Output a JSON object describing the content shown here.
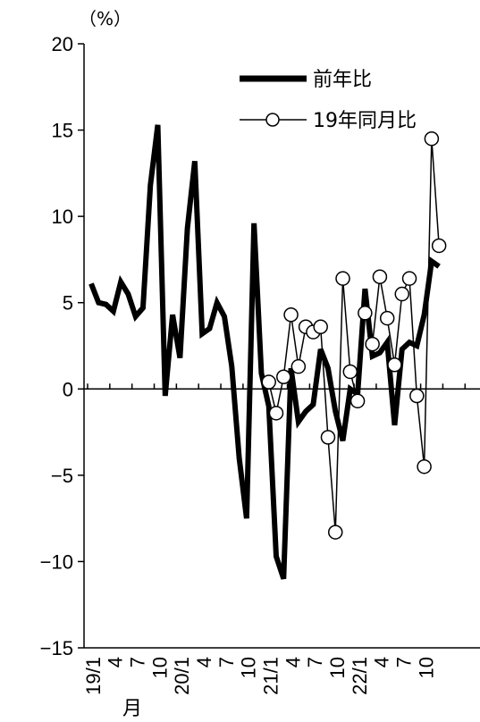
{
  "chart_data": {
    "type": "line",
    "unit_label": "（%）",
    "ylim": [
      -15,
      20
    ],
    "y_ticks": [
      20,
      15,
      10,
      5,
      0,
      -5,
      -10,
      -15
    ],
    "y_tick_labels": [
      "20",
      "15",
      "10",
      "5",
      "0",
      "−5",
      "−10",
      "−15"
    ],
    "x_tick_labels": [
      {
        "index": 0,
        "text": "19/1"
      },
      {
        "index": 3,
        "text": "4"
      },
      {
        "index": 6,
        "text": "7"
      },
      {
        "index": 9,
        "text": "10"
      },
      {
        "index": 12,
        "text": "20/1"
      },
      {
        "index": 15,
        "text": "4"
      },
      {
        "index": 18,
        "text": "7"
      },
      {
        "index": 21,
        "text": "10"
      },
      {
        "index": 24,
        "text": "21/1"
      },
      {
        "index": 27,
        "text": "4"
      },
      {
        "index": 30,
        "text": "7"
      },
      {
        "index": 33,
        "text": "10"
      },
      {
        "index": 36,
        "text": "22/1"
      },
      {
        "index": 39,
        "text": "4"
      },
      {
        "index": 42,
        "text": "7"
      },
      {
        "index": 45,
        "text": "10"
      }
    ],
    "x_month_label": "月",
    "series": [
      {
        "name": "前年比",
        "color": "#000000",
        "style": "thick",
        "values": [
          6.1,
          5.0,
          4.9,
          4.5,
          6.2,
          5.5,
          4.2,
          4.7,
          11.8,
          15.3,
          -0.4,
          4.3,
          1.8,
          9.3,
          13.2,
          3.2,
          3.5,
          5.0,
          4.2,
          1.3,
          -4.0,
          -7.5,
          9.6,
          0.9,
          -1.0,
          -9.7,
          -11.0,
          1.2,
          -1.9,
          -1.3,
          -0.9,
          2.3,
          1.2,
          -1.3,
          -3.0,
          0.0,
          -0.3,
          5.8,
          1.9,
          2.1,
          2.7,
          -2.1,
          2.3,
          2.7,
          2.5,
          4.3,
          7.4,
          7.1
        ]
      },
      {
        "name": "19年同月比",
        "color": "#000000",
        "style": "thin-open-circle",
        "start_index": 24,
        "values": [
          0.4,
          -1.4,
          0.7,
          4.3,
          1.3,
          3.6,
          3.3,
          3.6,
          -2.8,
          -8.3,
          6.4,
          1.0,
          -0.7,
          4.4,
          2.6,
          6.5,
          4.1,
          1.4,
          5.5,
          6.4,
          -0.4,
          -4.5,
          14.5,
          8.3
        ]
      }
    ],
    "legend_position": "top-right"
  }
}
